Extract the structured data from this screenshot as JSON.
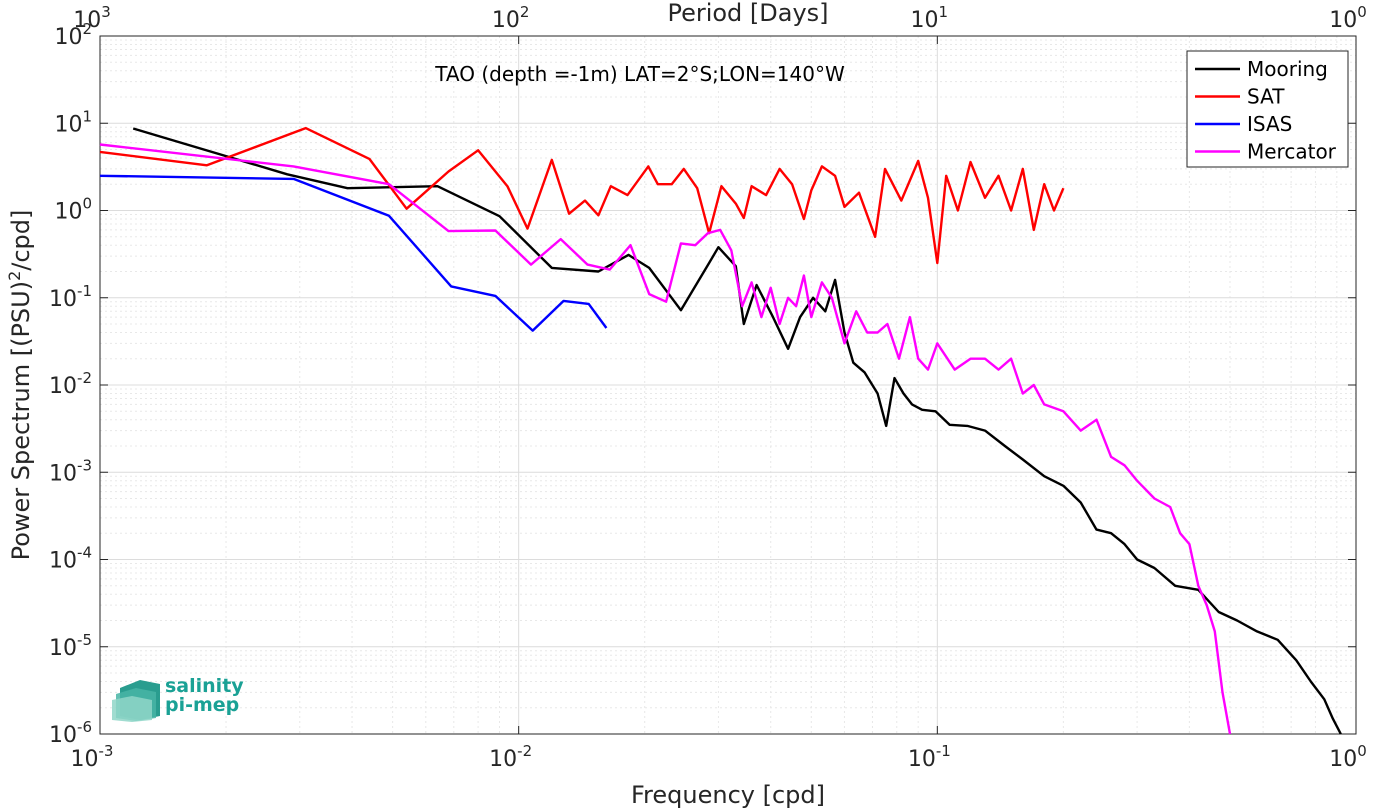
{
  "chart_data": {
    "type": "line",
    "title": "TAO (depth =-1m) LAT=2°S;LON=140°W",
    "xlabel": "Frequency [cpd]",
    "ylabel": "Power Spectrum [(PSU)",
    "ylabel_sup": "2",
    "ylabel_tail": "/cpd]",
    "top_xlabel": "Period [Days]",
    "xscale": "log",
    "yscale": "log",
    "xlim": [
      0.001,
      1
    ],
    "ylim": [
      1e-06,
      100
    ],
    "grid": true,
    "legend_position": "top-right",
    "x_ticks": [
      {
        "base": "10",
        "exp": "-3",
        "value": 0.001
      },
      {
        "base": "10",
        "exp": "-2",
        "value": 0.01
      },
      {
        "base": "10",
        "exp": "-1",
        "value": 0.1
      },
      {
        "base": "10",
        "exp": "0",
        "value": 1
      }
    ],
    "top_x_ticks": [
      {
        "base": "10",
        "exp": "3",
        "value": 0.001
      },
      {
        "base": "10",
        "exp": "2",
        "value": 0.01
      },
      {
        "base": "10",
        "exp": "1",
        "value": 0.1
      },
      {
        "base": "10",
        "exp": "0",
        "value": 1
      }
    ],
    "y_ticks": [
      {
        "base": "10",
        "exp": "-6",
        "value": 1e-06
      },
      {
        "base": "10",
        "exp": "-5",
        "value": 1e-05
      },
      {
        "base": "10",
        "exp": "-4",
        "value": 0.0001
      },
      {
        "base": "10",
        "exp": "-3",
        "value": 0.001
      },
      {
        "base": "10",
        "exp": "-2",
        "value": 0.01
      },
      {
        "base": "10",
        "exp": "-1",
        "value": 0.1
      },
      {
        "base": "10",
        "exp": "0",
        "value": 1
      },
      {
        "base": "10",
        "exp": "1",
        "value": 10
      },
      {
        "base": "10",
        "exp": "2",
        "value": 100
      }
    ],
    "series": [
      {
        "name": "Mooring",
        "color": "#000000",
        "points": [
          [
            0.0012,
            8.7
          ],
          [
            0.0028,
            2.6
          ],
          [
            0.0039,
            1.8
          ],
          [
            0.0064,
            1.9
          ],
          [
            0.009,
            0.86
          ],
          [
            0.012,
            0.22
          ],
          [
            0.0155,
            0.2
          ],
          [
            0.0183,
            0.31
          ],
          [
            0.0205,
            0.22
          ],
          [
            0.0244,
            0.072
          ],
          [
            0.0285,
            0.25
          ],
          [
            0.03,
            0.38
          ],
          [
            0.033,
            0.23
          ],
          [
            0.0345,
            0.05
          ],
          [
            0.037,
            0.14
          ],
          [
            0.0405,
            0.06
          ],
          [
            0.044,
            0.026
          ],
          [
            0.047,
            0.06
          ],
          [
            0.0505,
            0.1
          ],
          [
            0.054,
            0.07
          ],
          [
            0.057,
            0.16
          ],
          [
            0.06,
            0.04
          ],
          [
            0.063,
            0.018
          ],
          [
            0.067,
            0.014
          ],
          [
            0.072,
            0.008
          ],
          [
            0.0755,
            0.0034
          ],
          [
            0.079,
            0.012
          ],
          [
            0.083,
            0.008
          ],
          [
            0.087,
            0.006
          ],
          [
            0.092,
            0.0052
          ],
          [
            0.099,
            0.005
          ],
          [
            0.107,
            0.0035
          ],
          [
            0.118,
            0.0034
          ],
          [
            0.13,
            0.003
          ],
          [
            0.145,
            0.002
          ],
          [
            0.16,
            0.0014
          ],
          [
            0.18,
            0.0009
          ],
          [
            0.2,
            0.0007
          ],
          [
            0.22,
            0.00045
          ],
          [
            0.24,
            0.00022
          ],
          [
            0.26,
            0.0002
          ],
          [
            0.28,
            0.00015
          ],
          [
            0.3,
            0.0001
          ],
          [
            0.33,
            8e-05
          ],
          [
            0.37,
            5e-05
          ],
          [
            0.42,
            4.5e-05
          ],
          [
            0.47,
            2.5e-05
          ],
          [
            0.52,
            2e-05
          ],
          [
            0.58,
            1.5e-05
          ],
          [
            0.65,
            1.2e-05
          ],
          [
            0.72,
            7e-06
          ],
          [
            0.78,
            4e-06
          ],
          [
            0.84,
            2.5e-06
          ],
          [
            0.88,
            1.5e-06
          ],
          [
            0.92,
            1e-06
          ]
        ]
      },
      {
        "name": "SAT",
        "color": "#ff0000",
        "points": [
          [
            0.001,
            4.7
          ],
          [
            0.0018,
            3.3
          ],
          [
            0.0031,
            8.8
          ],
          [
            0.0044,
            3.9
          ],
          [
            0.0054,
            1.05
          ],
          [
            0.0068,
            2.8
          ],
          [
            0.008,
            4.9
          ],
          [
            0.0094,
            1.9
          ],
          [
            0.0105,
            0.62
          ],
          [
            0.012,
            3.8
          ],
          [
            0.0132,
            0.92
          ],
          [
            0.0144,
            1.3
          ],
          [
            0.0155,
            0.88
          ],
          [
            0.0166,
            1.9
          ],
          [
            0.0182,
            1.5
          ],
          [
            0.0204,
            3.2
          ],
          [
            0.0215,
            2.0
          ],
          [
            0.0232,
            2.0
          ],
          [
            0.0248,
            3.0
          ],
          [
            0.0267,
            1.8
          ],
          [
            0.0285,
            0.55
          ],
          [
            0.0305,
            1.9
          ],
          [
            0.033,
            1.2
          ],
          [
            0.0345,
            0.82
          ],
          [
            0.036,
            1.9
          ],
          [
            0.039,
            1.5
          ],
          [
            0.042,
            3.0
          ],
          [
            0.045,
            2.0
          ],
          [
            0.048,
            0.8
          ],
          [
            0.05,
            1.7
          ],
          [
            0.053,
            3.2
          ],
          [
            0.057,
            2.5
          ],
          [
            0.06,
            1.1
          ],
          [
            0.065,
            1.6
          ],
          [
            0.071,
            0.5
          ],
          [
            0.075,
            3.0
          ],
          [
            0.082,
            1.3
          ],
          [
            0.09,
            3.7
          ],
          [
            0.095,
            1.4
          ],
          [
            0.1,
            0.25
          ],
          [
            0.105,
            2.5
          ],
          [
            0.112,
            1.0
          ],
          [
            0.12,
            3.6
          ],
          [
            0.13,
            1.4
          ],
          [
            0.14,
            2.5
          ],
          [
            0.15,
            1.0
          ],
          [
            0.16,
            3.0
          ],
          [
            0.17,
            0.6
          ],
          [
            0.18,
            2.0
          ],
          [
            0.19,
            1.0
          ],
          [
            0.2,
            1.8
          ]
        ]
      },
      {
        "name": "ISAS",
        "color": "#0000ff",
        "points": [
          [
            0.001,
            2.5
          ],
          [
            0.0029,
            2.3
          ],
          [
            0.0049,
            0.87
          ],
          [
            0.0069,
            0.135
          ],
          [
            0.0088,
            0.105
          ],
          [
            0.0108,
            0.042
          ],
          [
            0.0128,
            0.092
          ],
          [
            0.0147,
            0.085
          ],
          [
            0.0162,
            0.045
          ]
        ]
      },
      {
        "name": "Mercator",
        "color": "#ff00ff",
        "points": [
          [
            0.001,
            5.7
          ],
          [
            0.0029,
            3.2
          ],
          [
            0.0049,
            2.0
          ],
          [
            0.0068,
            0.58
          ],
          [
            0.0088,
            0.59
          ],
          [
            0.0107,
            0.24
          ],
          [
            0.0126,
            0.47
          ],
          [
            0.0146,
            0.24
          ],
          [
            0.0165,
            0.21
          ],
          [
            0.0185,
            0.4
          ],
          [
            0.0205,
            0.11
          ],
          [
            0.0225,
            0.09
          ],
          [
            0.0244,
            0.42
          ],
          [
            0.0264,
            0.4
          ],
          [
            0.0283,
            0.55
          ],
          [
            0.0303,
            0.6
          ],
          [
            0.0322,
            0.35
          ],
          [
            0.0342,
            0.08
          ],
          [
            0.036,
            0.15
          ],
          [
            0.038,
            0.06
          ],
          [
            0.04,
            0.13
          ],
          [
            0.042,
            0.05
          ],
          [
            0.044,
            0.1
          ],
          [
            0.046,
            0.08
          ],
          [
            0.048,
            0.18
          ],
          [
            0.05,
            0.06
          ],
          [
            0.053,
            0.15
          ],
          [
            0.056,
            0.1
          ],
          [
            0.06,
            0.03
          ],
          [
            0.064,
            0.07
          ],
          [
            0.068,
            0.04
          ],
          [
            0.072,
            0.04
          ],
          [
            0.076,
            0.05
          ],
          [
            0.081,
            0.02
          ],
          [
            0.086,
            0.06
          ],
          [
            0.09,
            0.02
          ],
          [
            0.095,
            0.015
          ],
          [
            0.1,
            0.03
          ],
          [
            0.11,
            0.015
          ],
          [
            0.12,
            0.02
          ],
          [
            0.13,
            0.02
          ],
          [
            0.14,
            0.015
          ],
          [
            0.15,
            0.02
          ],
          [
            0.16,
            0.008
          ],
          [
            0.17,
            0.01
          ],
          [
            0.18,
            0.006
          ],
          [
            0.2,
            0.005
          ],
          [
            0.22,
            0.003
          ],
          [
            0.24,
            0.004
          ],
          [
            0.26,
            0.0015
          ],
          [
            0.28,
            0.0012
          ],
          [
            0.3,
            0.0008
          ],
          [
            0.33,
            0.0005
          ],
          [
            0.36,
            0.0004
          ],
          [
            0.38,
            0.0002
          ],
          [
            0.4,
            0.00015
          ],
          [
            0.42,
            5e-05
          ],
          [
            0.44,
            3e-05
          ],
          [
            0.46,
            1.5e-05
          ],
          [
            0.48,
            3e-06
          ],
          [
            0.5,
            1e-06
          ]
        ]
      }
    ]
  },
  "logo": {
    "line1": "salinity",
    "line2": "pi-mep"
  }
}
